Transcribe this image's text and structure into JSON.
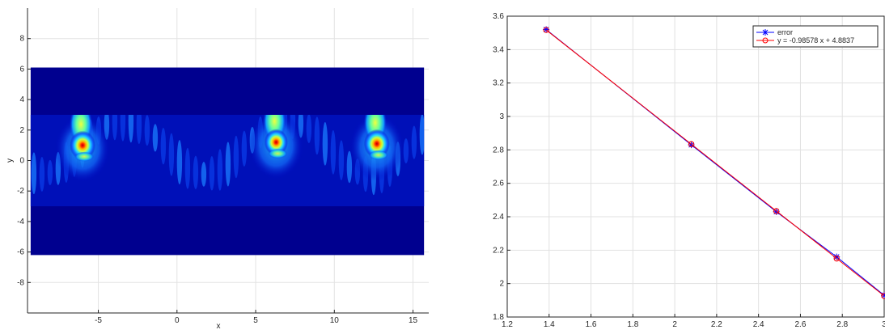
{
  "chart_data": [
    {
      "type": "heatmap",
      "title": "",
      "xlabel": "x",
      "ylabel": "y",
      "xlim": [
        -9.5,
        16
      ],
      "ylim": [
        -10,
        10
      ],
      "grid": true,
      "x_ticks": [
        -5,
        0,
        5,
        10,
        15
      ],
      "y_ticks": [
        -8,
        -6,
        -4,
        -2,
        0,
        2,
        4,
        6,
        8
      ],
      "x_tick_labels": [
        "-5",
        "0",
        "5",
        "10",
        "15"
      ],
      "y_tick_labels": [
        "-8",
        "-6",
        "-4",
        "-2",
        "0",
        "2",
        "4",
        "6",
        "8"
      ],
      "colormap": "jet",
      "field_extent": {
        "x": [
          -9.3,
          15.7
        ],
        "y": [
          -6.2,
          6.1
        ]
      },
      "waveguide_band": {
        "y": [
          -3,
          3
        ]
      },
      "hotspots": [
        {
          "x": -6.0,
          "y": 1.0,
          "peak": 1.0
        },
        {
          "x": 6.3,
          "y": 1.2,
          "peak": 0.9
        },
        {
          "x": 12.7,
          "y": 1.1,
          "peak": 1.0
        }
      ],
      "colors": {
        "background_field": "#00008f",
        "peak": "#b40000"
      }
    },
    {
      "type": "line",
      "title": "",
      "xlabel": "",
      "ylabel": "",
      "xlim": [
        1.2,
        3.0
      ],
      "ylim": [
        1.8,
        3.6
      ],
      "grid": true,
      "x_ticks": [
        1.2,
        1.4,
        1.6,
        1.8,
        2.0,
        2.2,
        2.4,
        2.6,
        2.8,
        3.0
      ],
      "y_ticks": [
        1.8,
        2.0,
        2.2,
        2.4,
        2.6,
        2.8,
        3.0,
        3.2,
        3.4,
        3.6
      ],
      "x_tick_labels": [
        "1.2",
        "1.4",
        "1.6",
        "1.8",
        "2",
        "2.2",
        "2.4",
        "2.6",
        "2.8",
        "3"
      ],
      "y_tick_labels": [
        "1.8",
        "2",
        "2.2",
        "2.4",
        "2.6",
        "2.8",
        "3",
        "3.2",
        "3.4",
        "3.6"
      ],
      "legend_position": "top-right",
      "series": [
        {
          "name": "error",
          "color": "#0000ff",
          "marker": "asterisk",
          "x": [
            1.386,
            2.079,
            2.485,
            2.773,
            3.0
          ],
          "y": [
            3.52,
            2.83,
            2.43,
            2.16,
            1.93
          ]
        },
        {
          "name": "y = -0.98578 x + 4.8837",
          "color": "#ff0000",
          "marker": "circle",
          "x": [
            1.386,
            2.079,
            2.485,
            2.773,
            3.0
          ],
          "y": [
            3.5174,
            2.8343,
            2.4341,
            2.1502,
            1.9264
          ]
        }
      ]
    }
  ]
}
